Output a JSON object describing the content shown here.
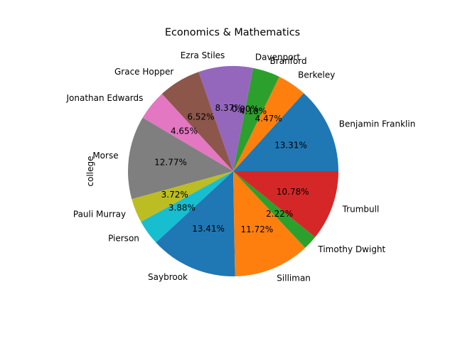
{
  "chart_data": {
    "type": "pie",
    "title": "Economics & Mathematics",
    "ylabel": "college",
    "start_angle_deg": 0,
    "direction": "counterclockwise",
    "slices": [
      {
        "label": "Benjamin Franklin",
        "value": 13.31,
        "pct_text": "13.31%",
        "color": "#1f77b4"
      },
      {
        "label": "Berkeley",
        "value": 4.47,
        "pct_text": "4.47%",
        "color": "#ff7f0e"
      },
      {
        "label": "Branford",
        "value": 4.18,
        "pct_text": "4.18%",
        "color": "#2ca02c"
      },
      {
        "label": "Davenport",
        "value": 0.0,
        "pct_text": "0.00%",
        "color": "#d62728"
      },
      {
        "label": "Ezra Stiles",
        "value": 8.37,
        "pct_text": "8.37%",
        "color": "#9467bd"
      },
      {
        "label": "Grace Hopper",
        "value": 6.52,
        "pct_text": "6.52%",
        "color": "#8c564b"
      },
      {
        "label": "Jonathan Edwards",
        "value": 4.65,
        "pct_text": "4.65%",
        "color": "#e377c2"
      },
      {
        "label": "Morse",
        "value": 12.77,
        "pct_text": "12.77%",
        "color": "#7f7f7f"
      },
      {
        "label": "Pauli Murray",
        "value": 3.72,
        "pct_text": "3.72%",
        "color": "#bcbd22"
      },
      {
        "label": "Pierson",
        "value": 3.88,
        "pct_text": "3.88%",
        "color": "#17becf"
      },
      {
        "label": "Saybrook",
        "value": 13.41,
        "pct_text": "13.41%",
        "color": "#1f77b4"
      },
      {
        "label": "Silliman",
        "value": 11.72,
        "pct_text": "11.72%",
        "color": "#ff7f0e"
      },
      {
        "label": "Timothy Dwight",
        "value": 2.22,
        "pct_text": "2.22%",
        "color": "#2ca02c"
      },
      {
        "label": "Trumbull",
        "value": 10.78,
        "pct_text": "10.78%",
        "color": "#d62728"
      }
    ]
  }
}
